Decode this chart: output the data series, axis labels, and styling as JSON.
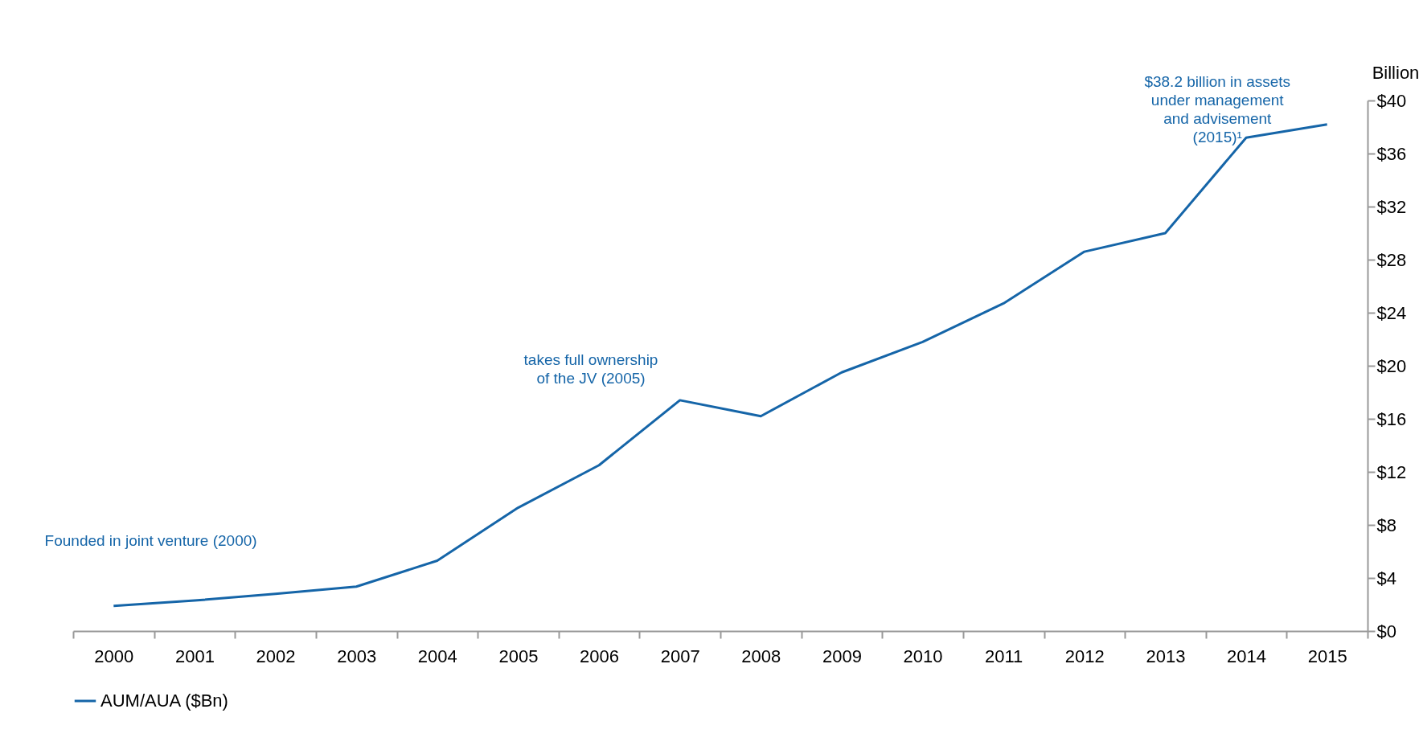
{
  "chart_data": {
    "type": "line",
    "ylabel": "Billion",
    "categories": [
      "2000",
      "2001",
      "2002",
      "2003",
      "2004",
      "2005",
      "2006",
      "2007",
      "2008",
      "2009",
      "2010",
      "2011",
      "2012",
      "2013",
      "2014",
      "2015"
    ],
    "series": [
      {
        "name": "AUM/AUA ($Bn)",
        "color": "#1565a8",
        "values": [
          1.9,
          2.3,
          2.8,
          3.35,
          5.3,
          9.3,
          12.5,
          17.4,
          16.2,
          19.5,
          21.8,
          24.7,
          28.6,
          30.0,
          37.2,
          38.2
        ]
      }
    ],
    "ylim": [
      0,
      40
    ],
    "yticks": [
      {
        "value": 0,
        "label": "$0"
      },
      {
        "value": 4,
        "label": "$4"
      },
      {
        "value": 8,
        "label": "$8"
      },
      {
        "value": 12,
        "label": "$12"
      },
      {
        "value": 16,
        "label": "$16"
      },
      {
        "value": 20,
        "label": "$20"
      },
      {
        "value": 24,
        "label": "$24"
      },
      {
        "value": 28,
        "label": "$28"
      },
      {
        "value": 32,
        "label": "$32"
      },
      {
        "value": 36,
        "label": "$36"
      },
      {
        "value": 40,
        "label": "$40"
      }
    ],
    "annotations": [
      "Founded in joint venture (2000)",
      "takes full ownership\nof the JV (2005)",
      "$38.2 billion in assets\nunder management\nand advisement\n(2015)¹"
    ],
    "grid": false,
    "legend": "bottom left",
    "marker": "none",
    "line_style": "solid"
  }
}
